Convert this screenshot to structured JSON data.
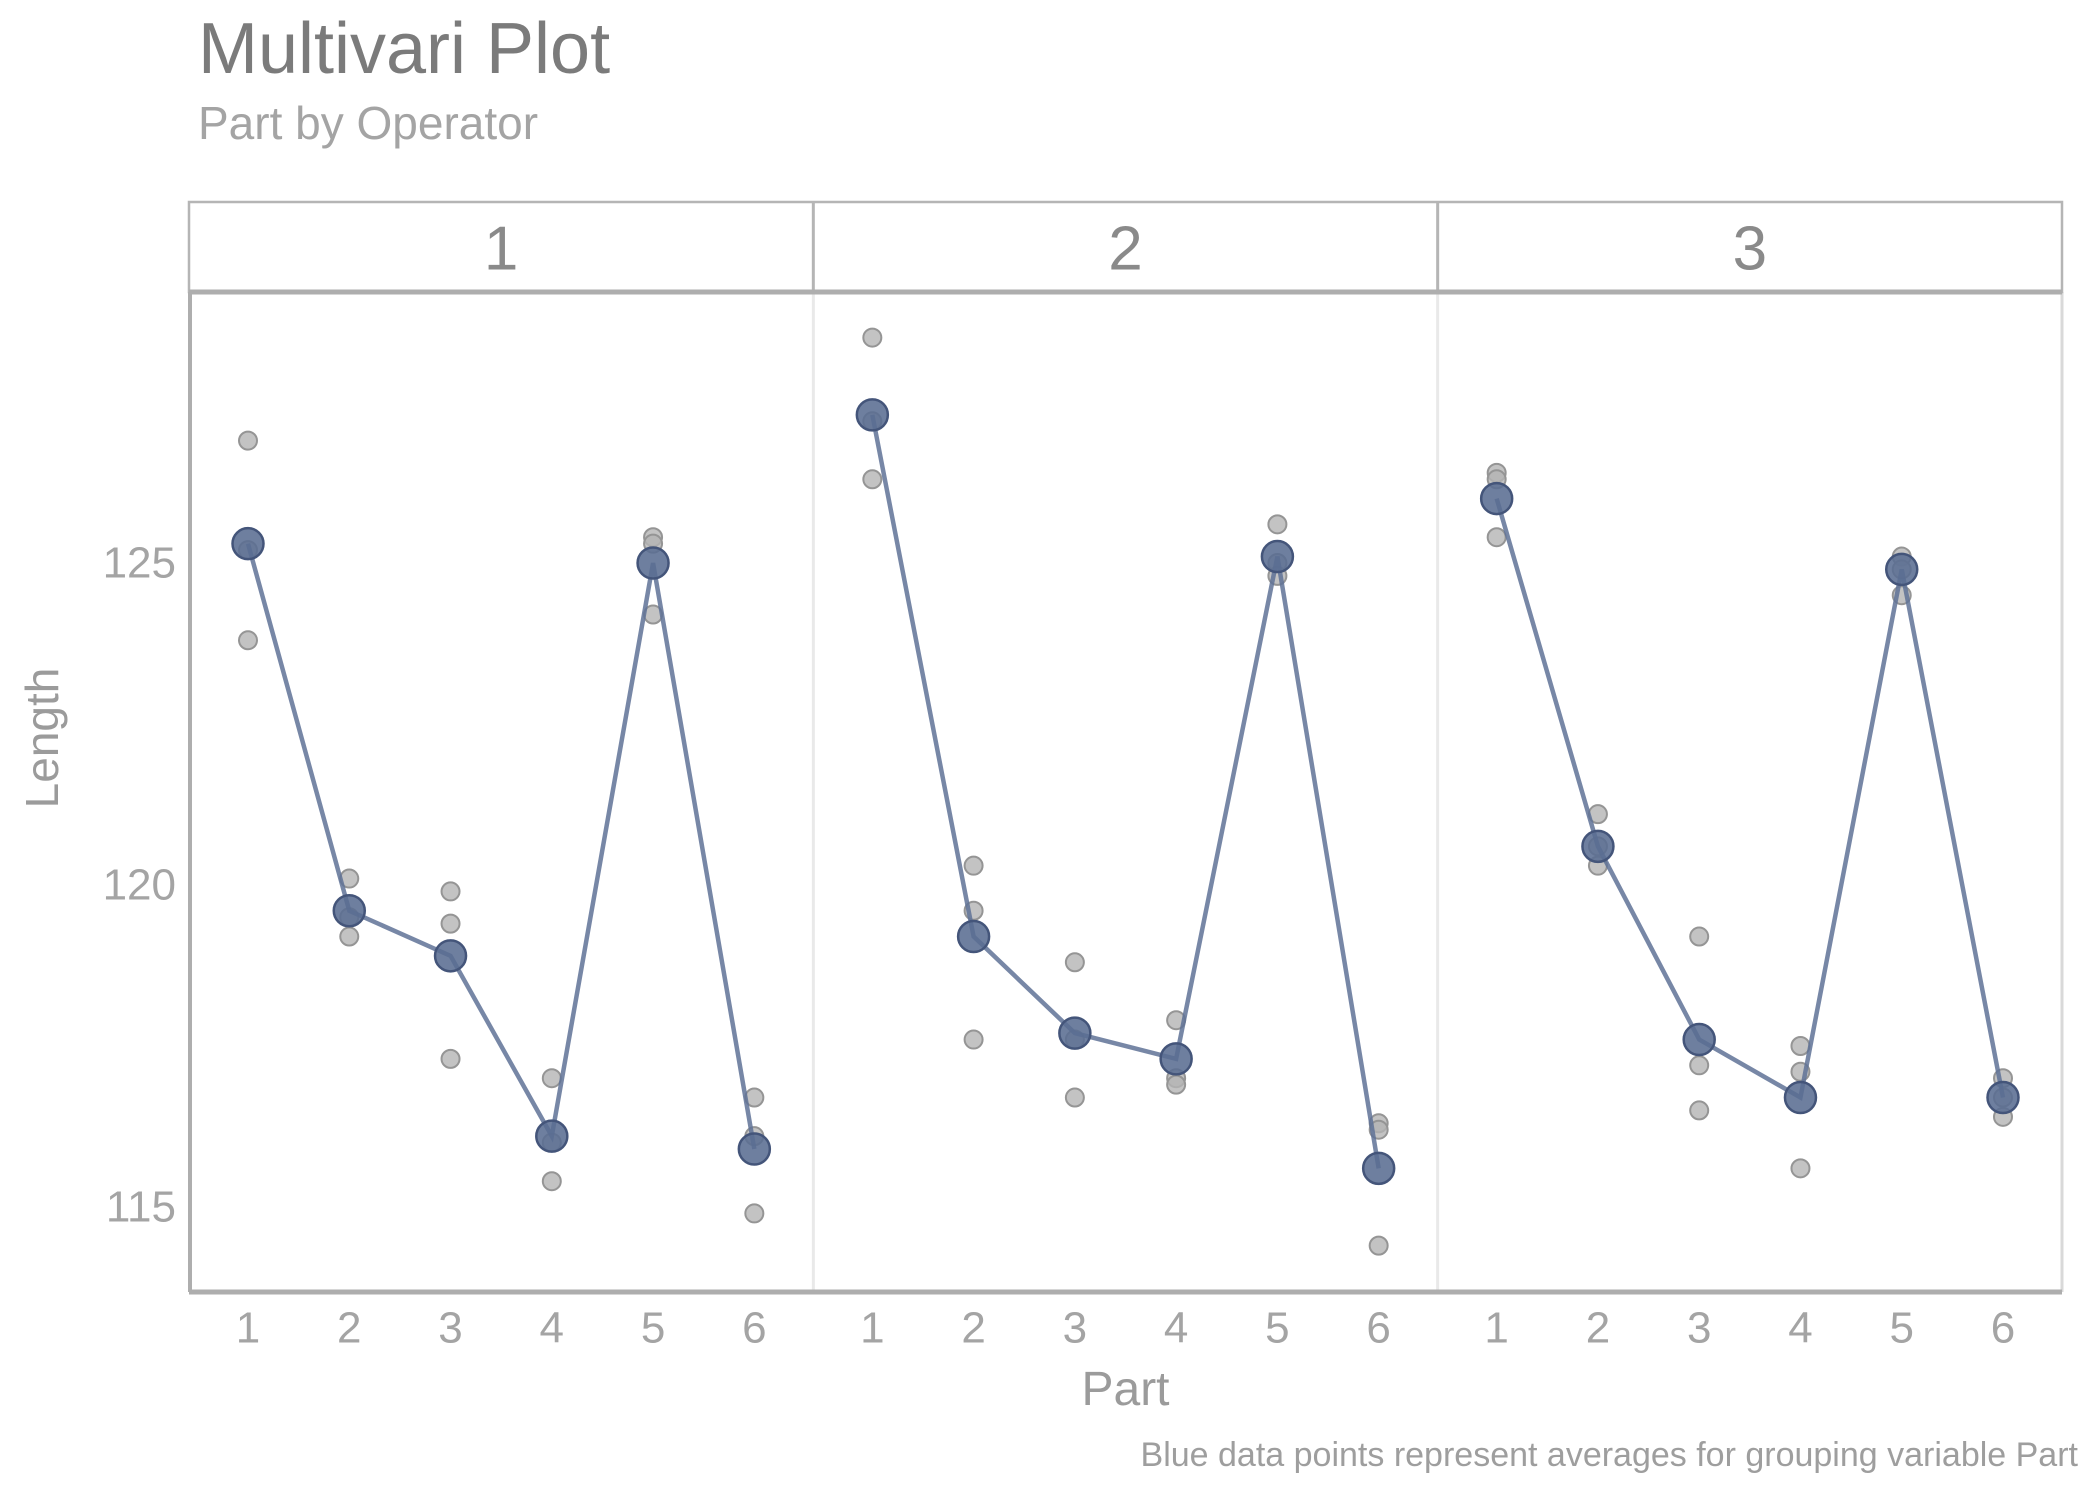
{
  "page": {
    "title": "Multivari Plot",
    "subtitle": "Part by Operator",
    "x_axis_label": "Part",
    "y_axis_label": "Length",
    "caption": "Blue data points represent averages for grouping variable Part"
  },
  "colors": {
    "mean_point_fill": "#5a6d92",
    "mean_point_stroke": "#44557a",
    "raw_point_fill": "#b4b4b4",
    "raw_point_stroke": "#959595",
    "line": "#5f7296",
    "axis_line": "#aeaeae",
    "panel_border": "#b5b5b5",
    "panel_separator": "#e9e9e9",
    "plot_right_edge": "#d9d9d9",
    "title_text": "#7b7b7b",
    "muted_text": "#a4a4a4",
    "tick_text": "#a4a4a4",
    "header_text": "#8a8a8a"
  },
  "chart_data": {
    "type": "scatter",
    "title": "Multivari Plot",
    "subtitle": "Part by Operator",
    "xlabel": "Part",
    "ylabel": "Length",
    "facet_by": "Operator",
    "grid": false,
    "legend": "none",
    "x_categories": [
      "1",
      "2",
      "3",
      "4",
      "5",
      "6"
    ],
    "y_ticks": [
      115,
      120,
      125
    ],
    "ylim": [
      113.7,
      129.2
    ],
    "facets": [
      {
        "label": "1",
        "means": [
          125.3,
          119.6,
          118.9,
          116.1,
          125.0,
          115.9
        ],
        "raw_points": [
          [
            126.9,
            125.2,
            123.8
          ],
          [
            120.1,
            119.5,
            119.2
          ],
          [
            119.9,
            119.4,
            117.3
          ],
          [
            117.0,
            116.0,
            115.4
          ],
          [
            125.4,
            125.3,
            124.2
          ],
          [
            116.7,
            116.1,
            114.9
          ]
        ]
      },
      {
        "label": "2",
        "means": [
          127.3,
          119.2,
          117.7,
          117.3,
          125.1,
          115.6
        ],
        "raw_points": [
          [
            128.5,
            127.2,
            126.3
          ],
          [
            120.3,
            119.6,
            117.6
          ],
          [
            118.8,
            117.6,
            116.7
          ],
          [
            117.9,
            117.0,
            116.9
          ],
          [
            125.6,
            125.0,
            124.8
          ],
          [
            116.3,
            116.2,
            114.4
          ]
        ]
      },
      {
        "label": "3",
        "means": [
          126.0,
          120.6,
          117.6,
          116.7,
          124.9,
          116.7
        ],
        "raw_points": [
          [
            126.4,
            126.3,
            125.4
          ],
          [
            121.1,
            120.6,
            120.3
          ],
          [
            119.2,
            117.2,
            116.5
          ],
          [
            117.5,
            117.1,
            115.6
          ],
          [
            125.1,
            124.9,
            124.5
          ],
          [
            117.0,
            116.7,
            116.4
          ]
        ]
      }
    ]
  }
}
